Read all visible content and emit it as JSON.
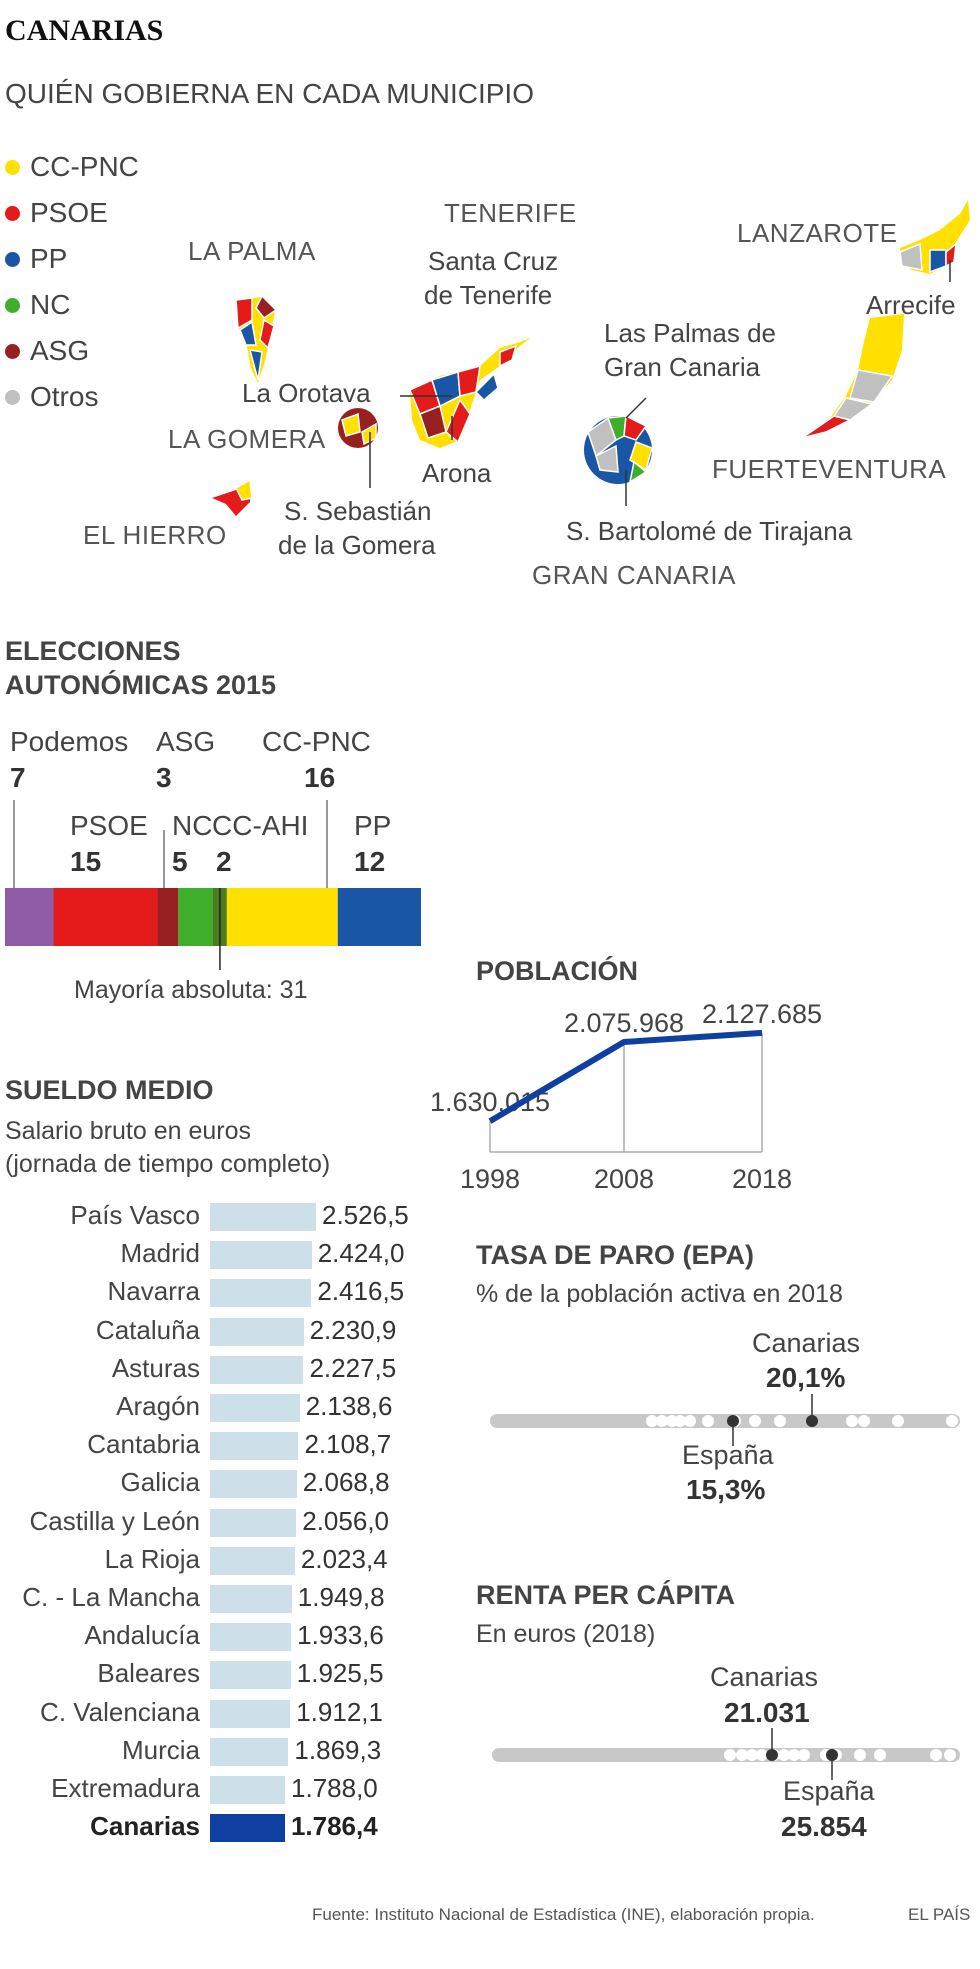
{
  "header": {
    "title": "CANARIAS",
    "subtitle": "QUIÉN GOBIERNA EN CADA MUNICIPIO"
  },
  "legend": [
    {
      "label": "CC-PNC",
      "color": "#ffe000"
    },
    {
      "label": "PSOE",
      "color": "#e31b1b"
    },
    {
      "label": "PP",
      "color": "#1a56a6"
    },
    {
      "label": "NC",
      "color": "#3fae2a"
    },
    {
      "label": "ASG",
      "color": "#992020"
    },
    {
      "label": "Otros",
      "color": "#c0c0c0"
    }
  ],
  "map": {
    "islands": {
      "la_palma": "LA PALMA",
      "la_gomera": "LA GOMERA",
      "el_hierro": "EL HIERRO",
      "tenerife": "TENERIFE",
      "gran_canaria": "GRAN CANARIA",
      "lanzarote": "LANZAROTE",
      "fuerteventura": "FUERTEVENTURA"
    },
    "places": {
      "santa_cruz_1": "Santa Cruz",
      "santa_cruz_2": "de Tenerife",
      "la_orotava": "La Orotava",
      "arona": "Arona",
      "s_sebastian_1": "S. Sebastián",
      "s_sebastian_2": "de la Gomera",
      "las_palmas_1": "Las Palmas de",
      "las_palmas_2": "Gran Canaria",
      "s_bartolome": "S. Bartolomé de Tirajana",
      "arrecife": "Arrecife"
    }
  },
  "elections": {
    "title_line1": "ELECCIONES",
    "title_line2": "AUTONÓMICAS 2015",
    "majority_label": "Mayoría absoluta: 31",
    "total_seats": 60,
    "majority": 31,
    "parties": [
      {
        "name": "Podemos",
        "seats": 7,
        "color": "#8e5ba6"
      },
      {
        "name": "PSOE",
        "seats": 15,
        "color": "#e31b1b"
      },
      {
        "name": "ASG",
        "seats": 3,
        "color": "#992020"
      },
      {
        "name": "NC",
        "seats": 5,
        "color": "#3fae2a"
      },
      {
        "name": "CC-AHI",
        "seats": 2,
        "color": "#4c7c22"
      },
      {
        "name": "CC-PNC",
        "seats": 16,
        "color": "#ffe000"
      },
      {
        "name": "PP",
        "seats": 12,
        "color": "#1a56a6"
      }
    ],
    "labels": {
      "podemos_name": "Podemos",
      "podemos_seats": "7",
      "asg_name": "ASG",
      "asg_seats": "3",
      "ccpnc_name": "CC-PNC",
      "ccpnc_seats": "16",
      "psoe_name": "PSOE",
      "psoe_seats": "15",
      "nc_name": "NC",
      "nc_seats": "5",
      "ccahi_name": "CC-AHI",
      "ccahi_seats": "2",
      "pp_name": "PP",
      "pp_seats": "12"
    }
  },
  "salary": {
    "title": "SUELDO MEDIO",
    "subtitle_line1": "Salario bruto en euros",
    "subtitle_line2": "(jornada de tiempo completo)",
    "rows": [
      {
        "label": "País Vasco",
        "value": 2526.5,
        "display": "2.526,5"
      },
      {
        "label": "Madrid",
        "value": 2424.0,
        "display": "2.424,0"
      },
      {
        "label": "Navarra",
        "value": 2416.5,
        "display": "2.416,5"
      },
      {
        "label": "Cataluña",
        "value": 2230.9,
        "display": "2.230,9"
      },
      {
        "label": "Asturas",
        "value": 2227.5,
        "display": "2.227,5"
      },
      {
        "label": "Aragón",
        "value": 2138.6,
        "display": "2.138,6"
      },
      {
        "label": "Cantabria",
        "value": 2108.7,
        "display": "2.108,7"
      },
      {
        "label": "Galicia",
        "value": 2068.8,
        "display": "2.068,8"
      },
      {
        "label": "Castilla y León",
        "value": 2056.0,
        "display": "2.056,0"
      },
      {
        "label": "La Rioja",
        "value": 2023.4,
        "display": "2.023,4"
      },
      {
        "label": "C. - La Mancha",
        "value": 1949.8,
        "display": "1.949,8"
      },
      {
        "label": "Andalucía",
        "value": 1933.6,
        "display": "1.933,6"
      },
      {
        "label": "Baleares",
        "value": 1925.5,
        "display": "1.925,5"
      },
      {
        "label": "C. Valenciana",
        "value": 1912.1,
        "display": "1.912,1"
      },
      {
        "label": "Murcia",
        "value": 1869.3,
        "display": "1.869,3"
      },
      {
        "label": "Extremadura",
        "value": 1788.0,
        "display": "1.788,0"
      },
      {
        "label": "Canarias",
        "value": 1786.4,
        "display": "1.786,4",
        "highlight": true
      }
    ],
    "colors": {
      "bar": "#cde0ea",
      "highlight": "#0f3fa0"
    }
  },
  "population": {
    "title": "POBLACIÓN",
    "points": [
      {
        "year": "1998",
        "value": 1630015,
        "label": "1.630.015"
      },
      {
        "year": "2008",
        "value": 2075968,
        "label": "2.075.968"
      },
      {
        "year": "2018",
        "value": 2127685,
        "label": "2.127.685"
      }
    ],
    "line_color": "#0f3fa0"
  },
  "unemployment": {
    "title": "TASA DE PARO (EPA)",
    "subtitle": "% de la población activa en 2018",
    "canarias_label": "Canarias",
    "canarias_value": "20,1%",
    "espana_label": "España",
    "espana_value": "15,3%"
  },
  "income": {
    "title": "RENTA PER CÁPITA",
    "subtitle": "En euros (2018)",
    "canarias_label": "Canarias",
    "canarias_value": "21.031",
    "espana_label": "España",
    "espana_value": "25.854"
  },
  "footer": {
    "source": "Fuente: Instituto Nacional de Estadística (INE), elaboración propia.",
    "brand": "EL PAÍS"
  }
}
